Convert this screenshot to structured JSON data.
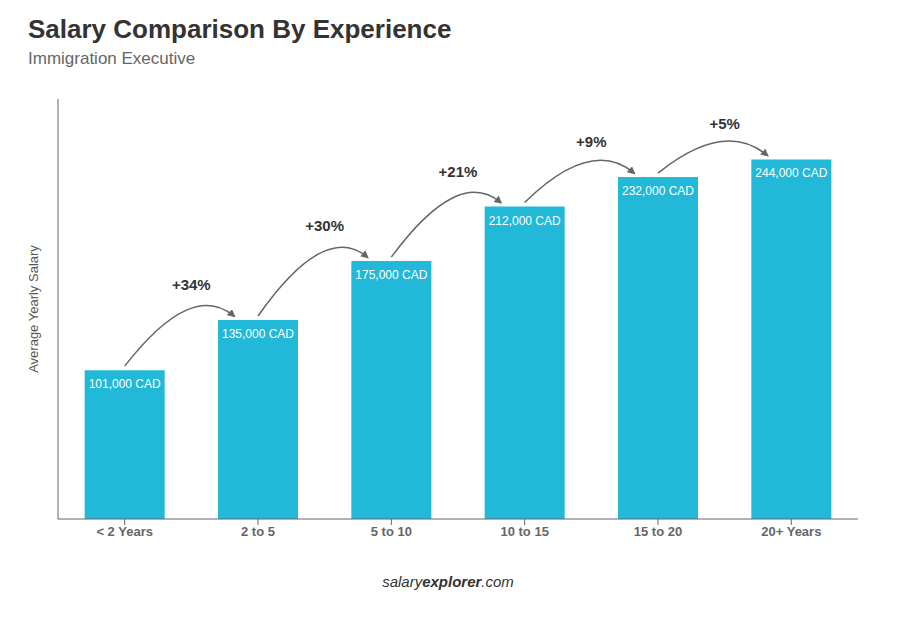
{
  "chart_data": {
    "type": "bar",
    "title": "Salary Comparison By Experience",
    "subtitle": "Immigration Executive",
    "categories": [
      "< 2 Years",
      "2 to 5",
      "5 to 10",
      "10 to 15",
      "15 to 20",
      "20+ Years"
    ],
    "values": [
      101000,
      135000,
      175000,
      212000,
      232000,
      244000
    ],
    "value_labels": [
      "101,000 CAD",
      "135,000 CAD",
      "175,000 CAD",
      "212,000 CAD",
      "232,000 CAD",
      "244,000 CAD"
    ],
    "data_labels": true,
    "color": "#22b8d8",
    "ylabel": "Average Yearly Salary",
    "ylim": [
      0,
      285000
    ],
    "tick_labels": "x",
    "grid": false,
    "annotations": [
      "+34%",
      "+30%",
      "+21%",
      "+9%",
      "+5%"
    ],
    "watermark": [
      "salary",
      "explorer",
      ".com"
    ]
  }
}
